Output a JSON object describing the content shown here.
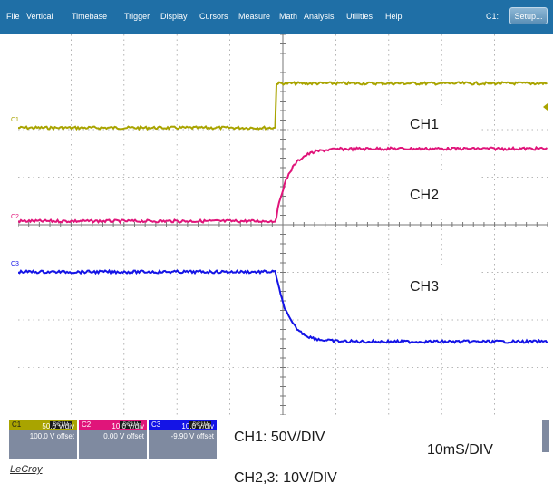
{
  "menu": [
    "File",
    "Vertical",
    "Timebase",
    "Trigger",
    "Display",
    "Cursors",
    "Measure",
    "Math",
    "Analysis",
    "Utilities",
    "Help"
  ],
  "toolbar": {
    "channel_label": "C1:",
    "setup_label": "Setup..."
  },
  "channels": [
    {
      "label": "C1",
      "color": "#a9a400",
      "coupling": "DC1M",
      "vdiv": "50.0 V/div",
      "offset": "100.0 V offset"
    },
    {
      "label": "C2",
      "color": "#e0157a",
      "coupling": "DC1M",
      "vdiv": "10.0 V/div",
      "offset": "0.00 V offset"
    },
    {
      "label": "C3",
      "color": "#1414e6",
      "coupling": "DC1M",
      "vdiv": "10.0 V/div",
      "offset": "-9.90 V offset"
    }
  ],
  "annotations": {
    "ch1": "CH1",
    "ch2": "CH2",
    "ch3": "CH3",
    "scale1": "CH1: 50V/DIV",
    "scale23": "CH2,3: 10V/DIV",
    "timebase": "10mS/DIV"
  },
  "brand": "LeCroy",
  "colors": {
    "menubar": "#1f6fa6",
    "ch1": "#a9a400",
    "ch2": "#e0157a",
    "ch3": "#1414e6"
  }
}
